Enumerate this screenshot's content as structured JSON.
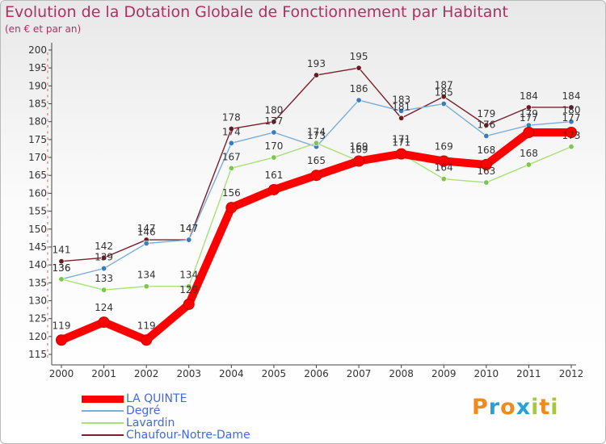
{
  "chart_data": {
    "type": "line",
    "title": "Evolution de la Dotation Globale de Fonctionnement par Habitant",
    "subtitle": "(en € et par an)",
    "xlabel": "",
    "ylabel": "",
    "ylim": [
      115,
      200
    ],
    "yticks": [
      115,
      120,
      125,
      130,
      135,
      140,
      145,
      150,
      155,
      160,
      165,
      170,
      175,
      180,
      185,
      190,
      195,
      200
    ],
    "categories": [
      "2000",
      "2001",
      "2002",
      "2003",
      "2004",
      "2005",
      "2006",
      "2007",
      "2008",
      "2009",
      "2010",
      "2011",
      "2012"
    ],
    "series": [
      {
        "name": "Chaufour-Notre-Dame",
        "color": "#7a1f2b",
        "point_color": "#6b1a22",
        "values": [
          141,
          142,
          147,
          147,
          178,
          180,
          193,
          195,
          181,
          187,
          179,
          184,
          184
        ]
      },
      {
        "name": "Degré",
        "color": "#7aaed8",
        "point_color": "#3a7cc0",
        "values": [
          136,
          139,
          146,
          147,
          174,
          177,
          173,
          186,
          183,
          185,
          176,
          179,
          180
        ]
      },
      {
        "name": "Lavardin",
        "color": "#a8e07a",
        "point_color": "#7cc84a",
        "values": [
          136,
          133,
          134,
          134,
          167,
          170,
          174,
          169,
          171,
          164,
          163,
          168,
          173
        ]
      },
      {
        "name": "LA QUINTE",
        "color": "#ff0000",
        "point_color": "#ff0000",
        "values": [
          119,
          124,
          119,
          129,
          156,
          161,
          165,
          169,
          171,
          169,
          168,
          177,
          177
        ]
      }
    ],
    "legend": [
      "LA QUINTE",
      "Degré",
      "Lavardin",
      "Chaufour-Notre-Dame"
    ],
    "legend_position": "bottom-left",
    "grid": false
  },
  "logo": {
    "letters": [
      "P",
      "r",
      "o",
      "x",
      "i",
      "t",
      "i"
    ],
    "colors": [
      "#f08a1c",
      "#2aa0d8",
      "#f08a1c",
      "#2aa0d8",
      "#a6c93a",
      "#f08a1c",
      "#a6c93a"
    ]
  }
}
